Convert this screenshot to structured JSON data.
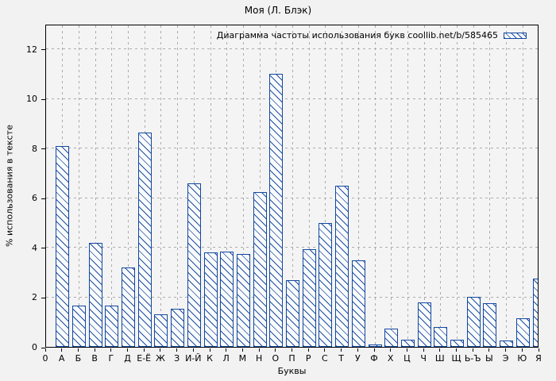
{
  "chart_data": {
    "type": "bar",
    "title": "Моя (Л. Блэк)",
    "legend": "Диаграмма частоты использования букв coollib.net/b/585465",
    "legend_position": "top-right-inside",
    "xlabel": "Буквы",
    "ylabel": "% использования в тексте",
    "categories": [
      "0",
      "А",
      "Б",
      "В",
      "Г",
      "Д",
      "Е-Ё",
      "Ж",
      "З",
      "И-Й",
      "К",
      "Л",
      "М",
      "Н",
      "О",
      "П",
      "Р",
      "С",
      "Т",
      "У",
      "Ф",
      "Х",
      "Ц",
      "Ч",
      "Ш",
      "Щ",
      "Ь-Ъ",
      "Ы",
      "Э",
      "Ю",
      "Я"
    ],
    "values": [
      0,
      8.1,
      1.65,
      4.2,
      1.65,
      3.2,
      8.65,
      1.3,
      1.55,
      6.6,
      3.8,
      3.85,
      3.75,
      6.25,
      11.0,
      2.7,
      3.95,
      5.0,
      6.5,
      3.5,
      0.1,
      0.75,
      0.3,
      1.8,
      0.8,
      0.3,
      2.0,
      1.75,
      0.25,
      1.15,
      2.75
    ],
    "y_ticks": [
      0,
      2,
      4,
      6,
      8,
      10,
      12
    ],
    "ylim": [
      0,
      13.02
    ],
    "grid": true,
    "colors": {
      "bar_stroke": "#1247a0",
      "bar_fill": "#fafbfc",
      "grid": "#ababab",
      "axis": "#000000",
      "page_bg": "#f2f2f2",
      "plot_bg": "#f4f4f4"
    }
  }
}
